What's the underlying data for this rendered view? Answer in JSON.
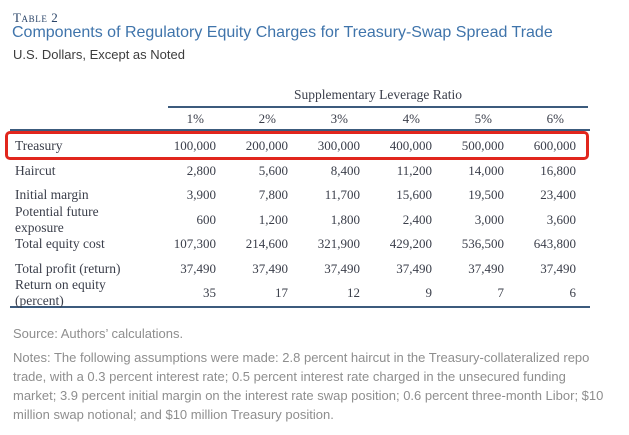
{
  "header": {
    "table_label": "Table 2",
    "title": "Components of Regulatory Equity Charges for Treasury-Swap Spread Trade",
    "subtitle": "U.S. Dollars, Except as Noted"
  },
  "table": {
    "group_header": "Supplementary Leverage Ratio",
    "columns": [
      "1%",
      "2%",
      "3%",
      "4%",
      "5%",
      "6%"
    ],
    "rows": [
      {
        "label": "Treasury",
        "highlighted": true,
        "values": [
          "100,000",
          "200,000",
          "300,000",
          "400,000",
          "500,000",
          "600,000"
        ]
      },
      {
        "label": "Haircut",
        "highlighted": false,
        "values": [
          "2,800",
          "5,600",
          "8,400",
          "11,200",
          "14,000",
          "16,800"
        ]
      },
      {
        "label": "Initial margin",
        "highlighted": false,
        "values": [
          "3,900",
          "7,800",
          "11,700",
          "15,600",
          "19,500",
          "23,400"
        ]
      },
      {
        "label": "Potential future exposure",
        "highlighted": false,
        "values": [
          "600",
          "1,200",
          "1,800",
          "2,400",
          "3,000",
          "3,600"
        ]
      },
      {
        "label": "Total equity cost",
        "highlighted": false,
        "values": [
          "107,300",
          "214,600",
          "321,900",
          "429,200",
          "536,500",
          "643,800"
        ]
      },
      {
        "label": "Total profit (return)",
        "highlighted": false,
        "values": [
          "37,490",
          "37,490",
          "37,490",
          "37,490",
          "37,490",
          "37,490"
        ]
      },
      {
        "label": "Return on equity (percent)",
        "highlighted": false,
        "values": [
          "35",
          "17",
          "12",
          "9",
          "7",
          "6"
        ]
      }
    ]
  },
  "footer": {
    "source": "Source: Authors’ calculations.",
    "notes": "Notes: The following assumptions were made: 2.8 percent haircut in the Treasury-collateralized repo trade, with a 0.3 percent interest rate; 0.5 percent interest rate charged in the unsecured funding market; 3.9 percent initial margin on the interest rate swap position; 0.6 percent three-month Libor; $10 million swap notional; and $10 million Treasury position."
  },
  "colors": {
    "title_blue": "#3f74ab",
    "table_label_navy": "#2a4468",
    "rule_navy": "#3c5b7d",
    "highlight_red": "#e1261d",
    "note_gray": "#8e8e8e",
    "table_text": "#3a3e4a"
  }
}
